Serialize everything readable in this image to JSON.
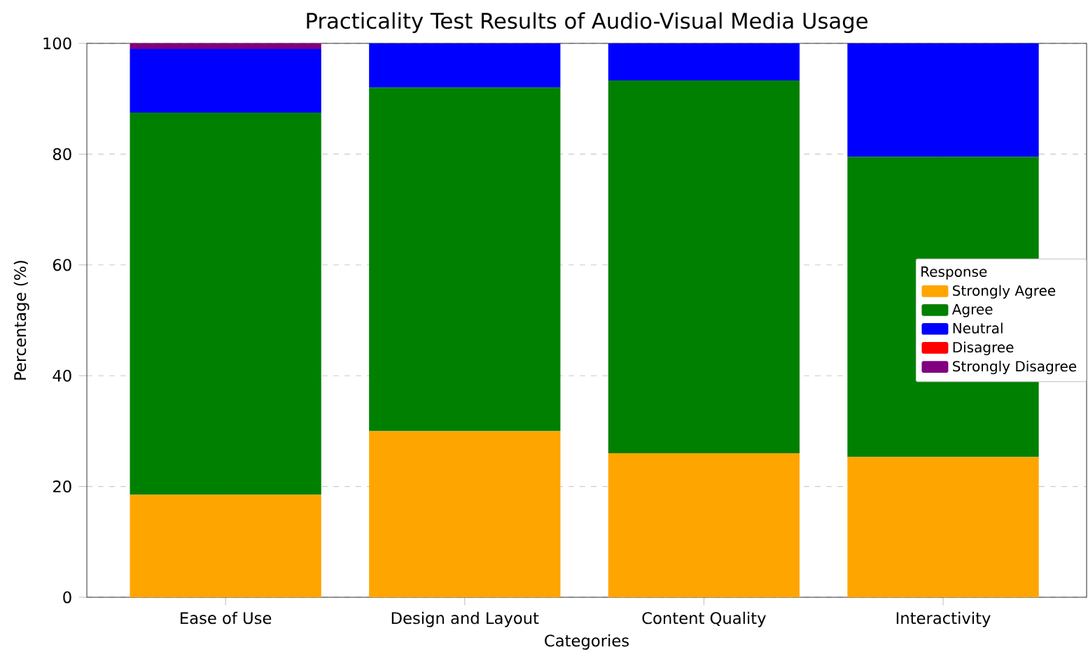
{
  "chart_data": {
    "type": "bar",
    "stacked": true,
    "title": "Practicality Test Results of Audio-Visual Media Usage",
    "xlabel": "Categories",
    "ylabel": "Percentage (%)",
    "legend_title": "Response",
    "legend": "right",
    "grid": true,
    "categories": [
      "Ease of Use",
      "Design and Layout",
      "Content Quality",
      "Interactivity"
    ],
    "ylim": [
      0,
      100
    ],
    "yticks": [
      0,
      20,
      40,
      60,
      80,
      100
    ],
    "series": [
      {
        "name": "Strongly Agree",
        "color": "#ffa500",
        "values": [
          18.5,
          30,
          26,
          25.3
        ]
      },
      {
        "name": "Agree",
        "color": "#008000",
        "values": [
          69,
          62,
          67.3,
          54.2
        ]
      },
      {
        "name": "Neutral",
        "color": "#0000ff",
        "values": [
          11.5,
          8,
          6.7,
          20.5
        ]
      },
      {
        "name": "Disagree",
        "color": "#ff0000",
        "values": [
          0,
          0,
          0,
          0
        ]
      },
      {
        "name": "Strongly Disagree",
        "color": "#800080",
        "values": [
          1,
          0,
          0,
          0
        ]
      }
    ]
  }
}
